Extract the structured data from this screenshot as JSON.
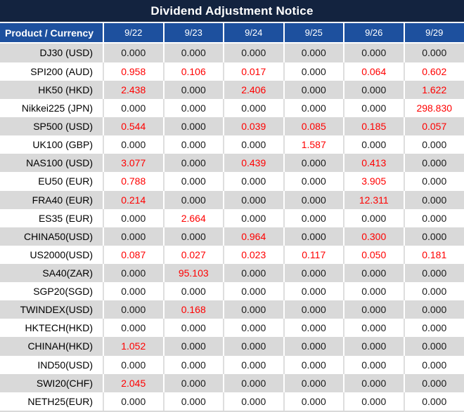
{
  "title": "Dividend Adjustment Notice",
  "colors": {
    "title_bg": "#13233f",
    "header_bg": "#1d509e",
    "row_alt_bg": "#d9d9d9",
    "row_bg": "#ffffff",
    "grid_on_white": "#dedede",
    "value_red": "#ff0000",
    "text": "#1a1a1a"
  },
  "table": {
    "label_header": "Product / Currency",
    "date_headers": [
      "9/22",
      "9/23",
      "9/24",
      "9/25",
      "9/26",
      "9/29"
    ],
    "rows": [
      {
        "label": "DJ30 (USD)",
        "values": [
          "0.000",
          "0.000",
          "0.000",
          "0.000",
          "0.000",
          "0.000"
        ]
      },
      {
        "label": "SPI200 (AUD)",
        "values": [
          "0.958",
          "0.106",
          "0.017",
          "0.000",
          "0.064",
          "0.602"
        ]
      },
      {
        "label": "HK50 (HKD)",
        "values": [
          "2.438",
          "0.000",
          "2.406",
          "0.000",
          "0.000",
          "1.622"
        ]
      },
      {
        "label": "Nikkei225 (JPN)",
        "values": [
          "0.000",
          "0.000",
          "0.000",
          "0.000",
          "0.000",
          "298.830"
        ]
      },
      {
        "label": "SP500 (USD)",
        "values": [
          "0.544",
          "0.000",
          "0.039",
          "0.085",
          "0.185",
          "0.057"
        ]
      },
      {
        "label": "UK100 (GBP)",
        "values": [
          "0.000",
          "0.000",
          "0.000",
          "1.587",
          "0.000",
          "0.000"
        ]
      },
      {
        "label": "NAS100 (USD)",
        "values": [
          "3.077",
          "0.000",
          "0.439",
          "0.000",
          "0.413",
          "0.000"
        ]
      },
      {
        "label": "EU50 (EUR)",
        "values": [
          "0.788",
          "0.000",
          "0.000",
          "0.000",
          "3.905",
          "0.000"
        ]
      },
      {
        "label": "FRA40 (EUR)",
        "values": [
          "0.214",
          "0.000",
          "0.000",
          "0.000",
          "12.311",
          "0.000"
        ]
      },
      {
        "label": "ES35 (EUR)",
        "values": [
          "0.000",
          "2.664",
          "0.000",
          "0.000",
          "0.000",
          "0.000"
        ]
      },
      {
        "label": "CHINA50(USD)",
        "values": [
          "0.000",
          "0.000",
          "0.964",
          "0.000",
          "0.300",
          "0.000"
        ]
      },
      {
        "label": "US2000(USD)",
        "values": [
          "0.087",
          "0.027",
          "0.023",
          "0.117",
          "0.050",
          "0.181"
        ]
      },
      {
        "label": "SA40(ZAR)",
        "values": [
          "0.000",
          "95.103",
          "0.000",
          "0.000",
          "0.000",
          "0.000"
        ]
      },
      {
        "label": "SGP20(SGD)",
        "values": [
          "0.000",
          "0.000",
          "0.000",
          "0.000",
          "0.000",
          "0.000"
        ]
      },
      {
        "label": "TWINDEX(USD)",
        "values": [
          "0.000",
          "0.168",
          "0.000",
          "0.000",
          "0.000",
          "0.000"
        ]
      },
      {
        "label": "HKTECH(HKD)",
        "values": [
          "0.000",
          "0.000",
          "0.000",
          "0.000",
          "0.000",
          "0.000"
        ]
      },
      {
        "label": "CHINAH(HKD)",
        "values": [
          "1.052",
          "0.000",
          "0.000",
          "0.000",
          "0.000",
          "0.000"
        ]
      },
      {
        "label": "IND50(USD)",
        "values": [
          "0.000",
          "0.000",
          "0.000",
          "0.000",
          "0.000",
          "0.000"
        ]
      },
      {
        "label": "SWI20(CHF)",
        "values": [
          "2.045",
          "0.000",
          "0.000",
          "0.000",
          "0.000",
          "0.000"
        ]
      },
      {
        "label": "NETH25(EUR)",
        "values": [
          "0.000",
          "0.000",
          "0.000",
          "0.000",
          "0.000",
          "0.000"
        ]
      }
    ]
  }
}
